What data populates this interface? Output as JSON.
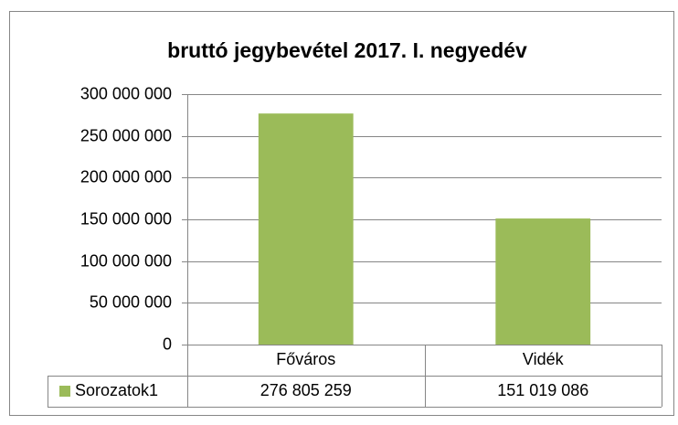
{
  "chart_data": {
    "type": "bar",
    "title": "bruttó jegybevétel 2017. I. negyedév",
    "categories": [
      "Főváros",
      "Vidék"
    ],
    "series": [
      {
        "name": "Sorozatok1",
        "color": "#9bbb59",
        "values": [
          276805259,
          151019086
        ],
        "value_labels": [
          "276 805 259",
          "151 019 086"
        ]
      }
    ],
    "ylim": [
      0,
      300000000
    ],
    "yticks": [
      0,
      {
        "value": 50000000,
        "label": "50 000 000"
      },
      {
        "value": 100000000,
        "label": "100 000 000"
      },
      {
        "value": 150000000,
        "label": "150 000 000"
      },
      {
        "value": 200000000,
        "label": "200 000 000"
      },
      {
        "value": 250000000,
        "label": "250 000 000"
      },
      {
        "value": 300000000,
        "label": "300 000 000"
      }
    ],
    "grid": true
  }
}
